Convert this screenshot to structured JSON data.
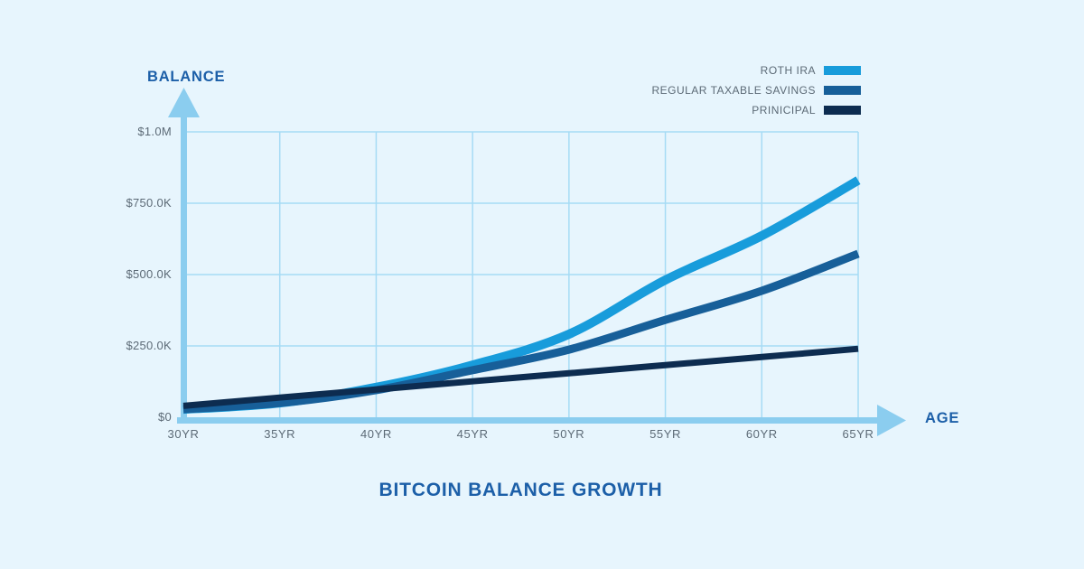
{
  "title": "BITCOIN BALANCE GROWTH",
  "colors": {
    "background": "#E7F5FD",
    "grid": "#A6DBF5",
    "axis": "#8BCDEF",
    "tick_text": "#5C6A76",
    "heading": "#1C5FA8"
  },
  "chart_data": {
    "type": "line",
    "title": "BITCOIN BALANCE GROWTH",
    "xlabel": "AGE",
    "ylabel": "BALANCE",
    "grid": true,
    "legend_position": "top-right",
    "xlim": [
      30,
      65
    ],
    "ylim": [
      0,
      1000000
    ],
    "x": [
      30,
      35,
      40,
      45,
      50,
      55,
      60,
      65
    ],
    "x_ticks": [
      {
        "label": "30YR",
        "value": 30
      },
      {
        "label": "35YR",
        "value": 35
      },
      {
        "label": "40YR",
        "value": 40
      },
      {
        "label": "45YR",
        "value": 45
      },
      {
        "label": "50YR",
        "value": 50
      },
      {
        "label": "55YR",
        "value": 55
      },
      {
        "label": "60YR",
        "value": 60
      },
      {
        "label": "65YR",
        "value": 65
      }
    ],
    "y_ticks": [
      {
        "label": "$1.0M",
        "value": 1000000
      },
      {
        "label": "$750.0K",
        "value": 750000
      },
      {
        "label": "$500.0K",
        "value": 500000
      },
      {
        "label": "$250.0K",
        "value": 250000
      },
      {
        "label": "$0",
        "value": 0
      }
    ],
    "series": [
      {
        "name": "ROTH IRA",
        "color": "#189CDB",
        "stroke_width": 10,
        "values": [
          28000,
          50000,
          105000,
          183000,
          291000,
          481000,
          636000,
          830000
        ]
      },
      {
        "name": "REGULAR TAXABLE SAVINGS",
        "color": "#175F99",
        "stroke_width": 9,
        "values": [
          28000,
          50000,
          95000,
          165000,
          237000,
          341000,
          443000,
          573000
        ]
      },
      {
        "name": "PRINICIPAL",
        "color": "#0D2C50",
        "stroke_width": 7,
        "values": [
          40000,
          69000,
          97000,
          126000,
          154000,
          183000,
          211000,
          240000
        ]
      }
    ]
  }
}
